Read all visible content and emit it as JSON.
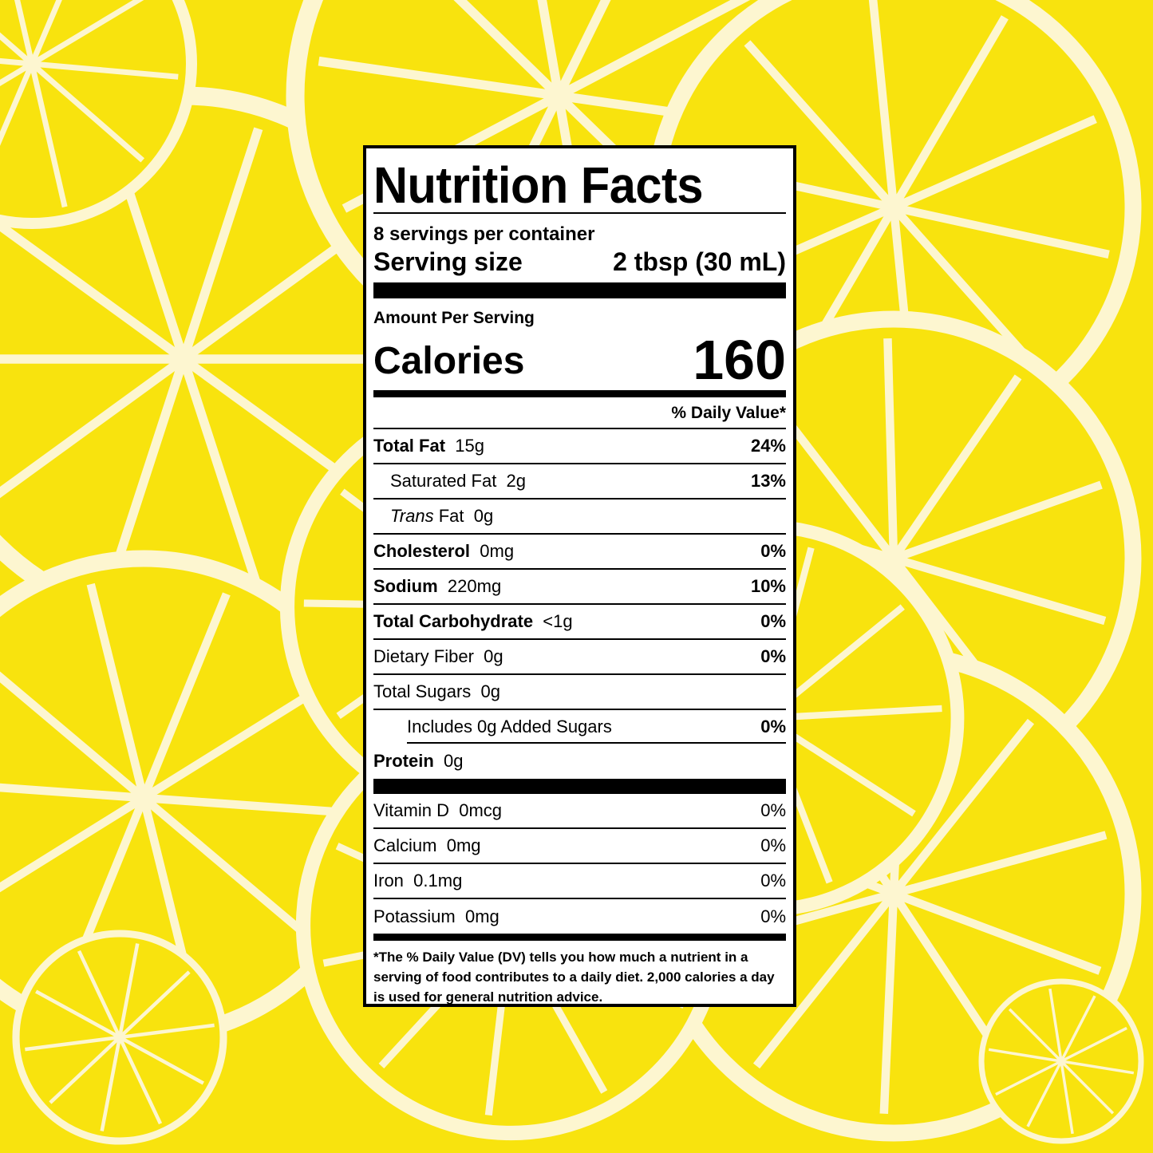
{
  "colors": {
    "background": "#f8e30e",
    "rind": "#fdf6d0",
    "label_bg": "#ffffff",
    "ink": "#000000"
  },
  "label": {
    "title": "Nutrition Facts",
    "servings": "8 servings per container",
    "serving_size_label": "Serving size",
    "serving_size_value": "2 tbsp (30 mL)",
    "amount_per_serving": "Amount Per Serving",
    "calories_label": "Calories",
    "calories_value": "160",
    "daily_value_header": "% Daily Value*",
    "nutrients": [
      {
        "name": "Total Fat",
        "amount": "15g",
        "dv": "24%",
        "bold": true
      },
      {
        "name": "Saturated Fat",
        "amount": "2g",
        "dv": "13%",
        "indent": 1
      },
      {
        "prefix_italic": "Trans",
        "name": "Fat",
        "amount": "0g",
        "dv": "",
        "indent": 1
      },
      {
        "name": "Cholesterol",
        "amount": "0mg",
        "dv": "0%",
        "bold": true
      },
      {
        "name": "Sodium",
        "amount": "220mg",
        "dv": "10%",
        "bold": true
      },
      {
        "name": "Total Carbohydrate",
        "amount": "<1g",
        "dv": "0%",
        "bold": true
      },
      {
        "name": "Dietary Fiber",
        "amount": "0g",
        "dv": "0%"
      },
      {
        "name": "Total Sugars",
        "amount": "0g",
        "dv": ""
      },
      {
        "name": "Includes 0g Added Sugars",
        "amount": "",
        "dv": "0%",
        "indent": 2
      },
      {
        "name": "Protein",
        "amount": "0g",
        "dv": "",
        "bold": true
      }
    ],
    "vitamins": [
      {
        "name": "Vitamin D",
        "amount": "0mcg",
        "dv": "0%"
      },
      {
        "name": "Calcium",
        "amount": "0mg",
        "dv": "0%"
      },
      {
        "name": "Iron",
        "amount": "0.1mg",
        "dv": "0%"
      },
      {
        "name": "Potassium",
        "amount": "0mg",
        "dv": "0%"
      }
    ],
    "footnote": "*The % Daily Value (DV) tells you how much a nutrient in a serving of food contributes to a daily diet. 2,000 calories a day is used for general nutrition advice."
  }
}
